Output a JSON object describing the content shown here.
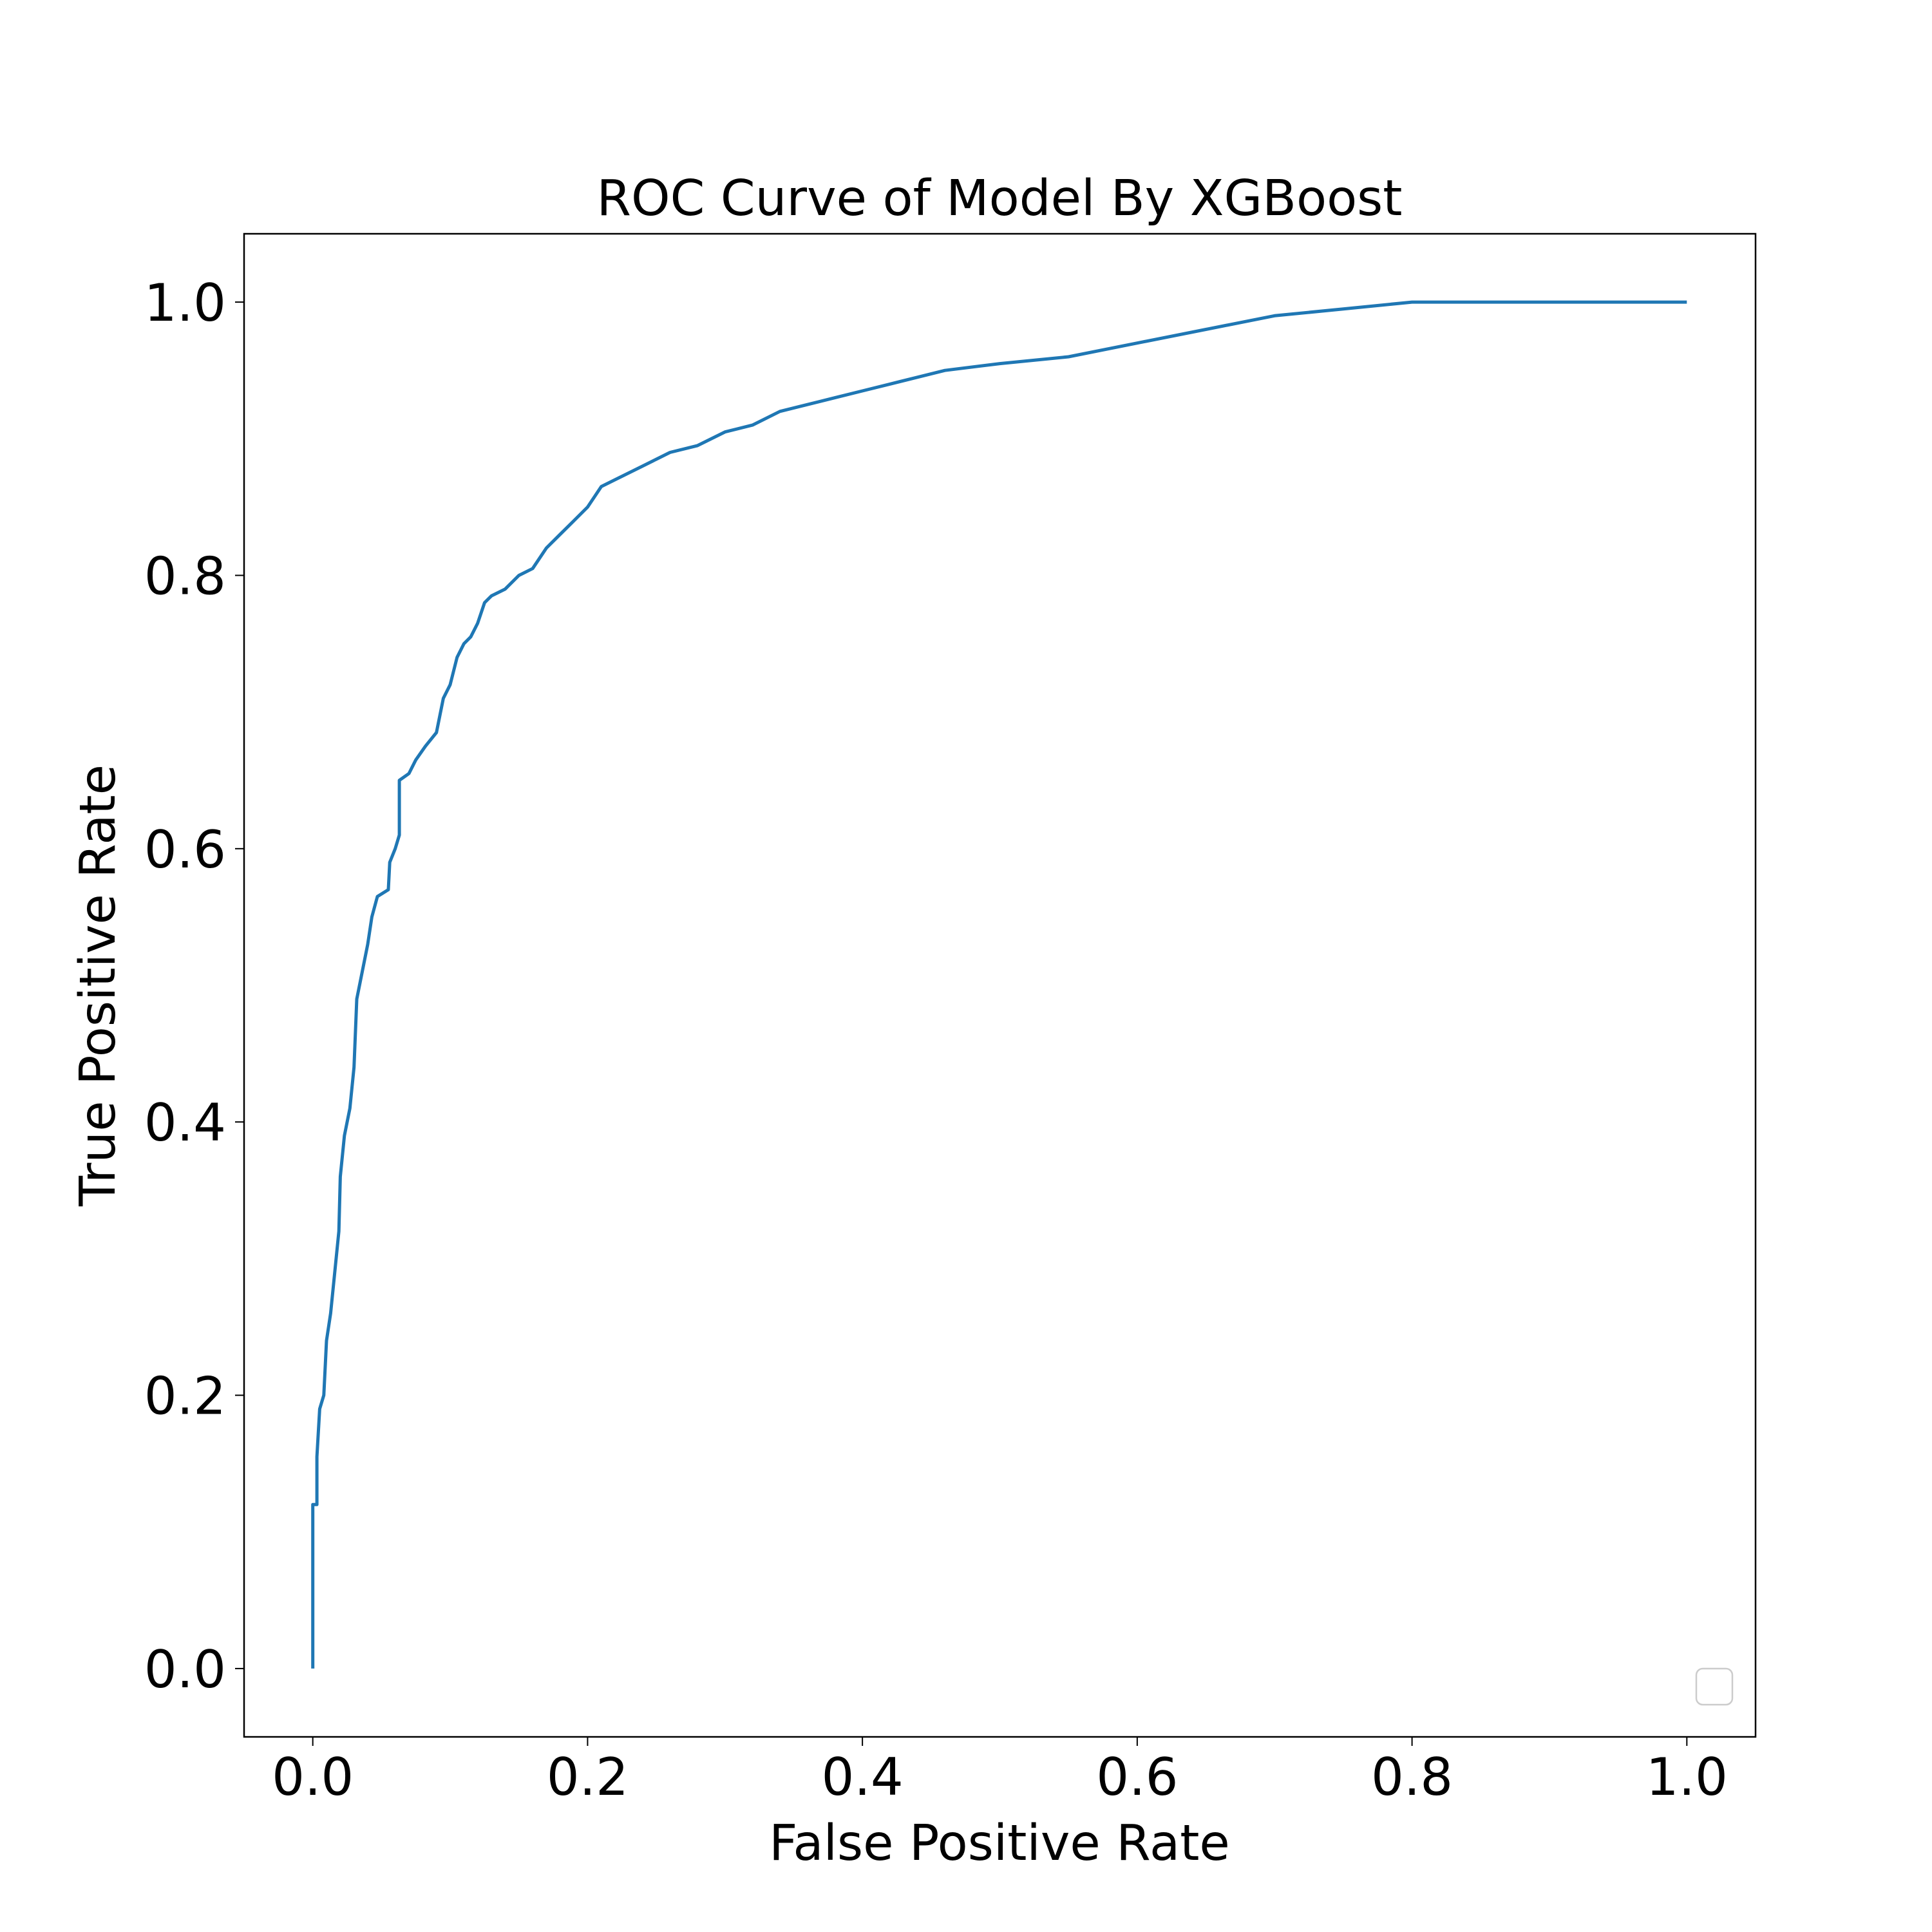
{
  "chart_data": {
    "type": "line",
    "title": "ROC Curve of Model By XGBoost",
    "xlabel": "False Positive Rate",
    "ylabel": "True Positive Rate",
    "xlim": [
      -0.05,
      1.05
    ],
    "ylim": [
      -0.05,
      1.05
    ],
    "xticks": [
      {
        "value": 0,
        "label": "0.0"
      },
      0.2,
      0.4,
      0.6,
      0.8,
      {
        "value": 1,
        "label": "1.0"
      }
    ],
    "yticks": [
      {
        "value": 0,
        "label": "0.0"
      },
      0.2,
      0.4,
      0.6,
      0.8,
      {
        "value": 1,
        "label": "1.0"
      }
    ],
    "legend": "lower right",
    "series": [
      {
        "color": "#1f77b4",
        "x": [
          0,
          0,
          0.003,
          0.003,
          0.005,
          0.008,
          0.01,
          0.013,
          0.016,
          0.019,
          0.02,
          0.023,
          0.027,
          0.03,
          0.032,
          0.036,
          0.04,
          0.043,
          0.047,
          0.055,
          0.056,
          0.06,
          0.063,
          0.063,
          0.07,
          0.075,
          0.082,
          0.09,
          0.095,
          0.1,
          0.105,
          0.11,
          0.115,
          0.12,
          0.125,
          0.13,
          0.14,
          0.15,
          0.16,
          0.17,
          0.18,
          0.19,
          0.2,
          0.21,
          0.22,
          0.24,
          0.25,
          0.26,
          0.28,
          0.3,
          0.32,
          0.34,
          0.36,
          0.38,
          0.4,
          0.42,
          0.44,
          0.46,
          0.5,
          0.55,
          0.6,
          0.65,
          0.7,
          0.75,
          0.8,
          1.0
        ],
        "values": [
          0,
          0.12,
          0.12,
          0.155,
          0.19,
          0.2,
          0.24,
          0.26,
          0.29,
          0.32,
          0.36,
          0.39,
          0.41,
          0.44,
          0.49,
          0.51,
          0.53,
          0.55,
          0.565,
          0.57,
          0.59,
          0.6,
          0.61,
          0.65,
          0.655,
          0.665,
          0.675,
          0.685,
          0.71,
          0.72,
          0.74,
          0.75,
          0.755,
          0.765,
          0.78,
          0.785,
          0.79,
          0.8,
          0.805,
          0.82,
          0.83,
          0.84,
          0.85,
          0.865,
          0.87,
          0.88,
          0.885,
          0.89,
          0.895,
          0.905,
          0.91,
          0.92,
          0.925,
          0.93,
          0.935,
          0.94,
          0.945,
          0.95,
          0.955,
          0.96,
          0.97,
          0.98,
          0.99,
          0.995,
          1.0,
          1.0
        ]
      }
    ]
  }
}
